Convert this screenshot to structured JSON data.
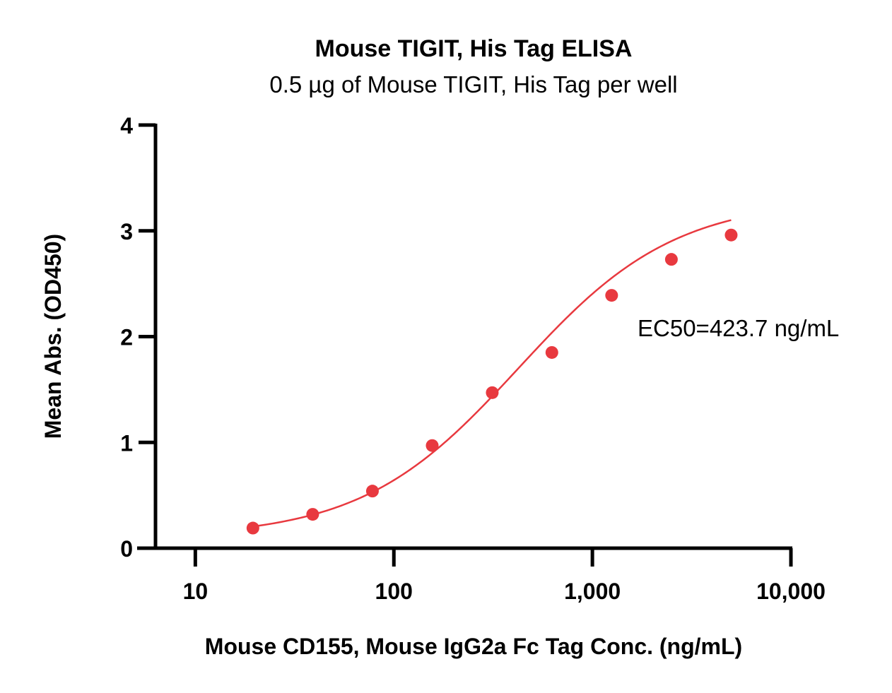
{
  "chart_data": {
    "type": "scatter",
    "title": "Mouse TIGIT, His Tag ELISA",
    "subtitle": "0.5 µg of Mouse TIGIT, His Tag per well",
    "xlabel": "Mouse CD155, Mouse IgG2a Fc Tag Conc. (ng/mL)",
    "ylabel": "Mean Abs. (OD450)",
    "x_scale": "log",
    "xlim": [
      6.3,
      10000
    ],
    "ylim": [
      0,
      4
    ],
    "x_ticks": [
      10,
      100,
      1000,
      10000
    ],
    "x_tick_labels": [
      "10",
      "100",
      "1,000",
      "10,000"
    ],
    "y_ticks": [
      0,
      1,
      2,
      3,
      4
    ],
    "y_tick_labels": [
      "0",
      "1",
      "2",
      "3",
      "4"
    ],
    "grid": false,
    "series": [
      {
        "color": "#e8393f",
        "points": [
          {
            "x": 19.5,
            "y": 0.19
          },
          {
            "x": 39,
            "y": 0.32
          },
          {
            "x": 78,
            "y": 0.54
          },
          {
            "x": 156,
            "y": 0.97
          },
          {
            "x": 313,
            "y": 1.47
          },
          {
            "x": 625,
            "y": 1.85
          },
          {
            "x": 1250,
            "y": 2.39
          },
          {
            "x": 2500,
            "y": 2.73
          },
          {
            "x": 5000,
            "y": 2.96
          }
        ],
        "fit": {
          "model": "4PL",
          "bottom": 0.1,
          "top": 3.3,
          "ec50": 423.7,
          "hill": 1.1
        }
      }
    ],
    "annotation": "EC50=423.7 ng/mL"
  }
}
